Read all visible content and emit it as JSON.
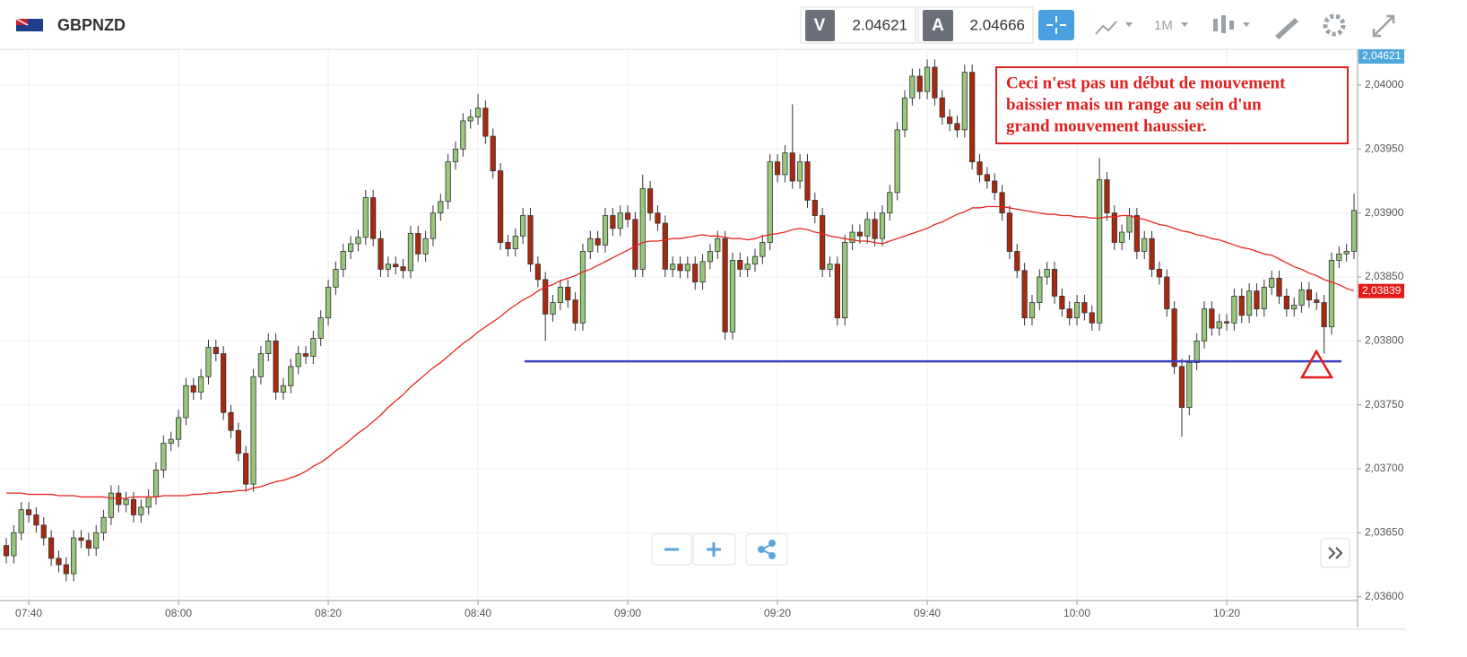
{
  "header": {
    "symbol": "GBPNZD",
    "sell_label": "V",
    "sell_price": "2.04621",
    "buy_label": "A",
    "buy_price": "2.04666",
    "timeframe": "1M"
  },
  "annotation": {
    "lines": [
      "Ceci n'est pas un début de mouvement",
      "baissier mais un range au sein d'un",
      "grand mouvement haussier."
    ],
    "color": "#e02020"
  },
  "chart_data": {
    "type": "candlestick",
    "grid": true,
    "up_color": "#97c77a",
    "down_color": "#a8290e",
    "ylim": [
      2.03597,
      2.04028
    ],
    "yticks": [
      {
        "value": 2.036,
        "label": "2,03600"
      },
      {
        "value": 2.0365,
        "label": "2,03650"
      },
      {
        "value": 2.037,
        "label": "2,03700"
      },
      {
        "value": 2.0375,
        "label": "2,03750"
      },
      {
        "value": 2.038,
        "label": "2,03800"
      },
      {
        "value": 2.0385,
        "label": "2,03850"
      },
      {
        "value": 2.039,
        "label": "2,03900"
      },
      {
        "value": 2.0395,
        "label": "2,03950"
      },
      {
        "value": 2.04,
        "label": "2,04000"
      }
    ],
    "price_tags": [
      {
        "value": 2.04621,
        "label": "2,04621",
        "color": "#4ea8de"
      },
      {
        "value": 2.03839,
        "label": "2,03839",
        "color": "#e51a1a"
      }
    ],
    "support": {
      "value": 2.03784,
      "color": "#3a3fbf"
    },
    "categories": [
      null,
      null,
      null,
      "07:40",
      null,
      null,
      null,
      null,
      null,
      null,
      null,
      null,
      null,
      null,
      null,
      null,
      null,
      null,
      null,
      null,
      null,
      null,
      null,
      "08:00",
      null,
      null,
      null,
      null,
      null,
      null,
      null,
      null,
      null,
      null,
      null,
      null,
      null,
      null,
      null,
      null,
      null,
      null,
      null,
      "08:20",
      null,
      null,
      null,
      null,
      null,
      null,
      null,
      null,
      null,
      null,
      null,
      null,
      null,
      null,
      null,
      null,
      null,
      null,
      null,
      "08:40",
      null,
      null,
      null,
      null,
      null,
      null,
      null,
      null,
      null,
      null,
      null,
      null,
      null,
      null,
      null,
      null,
      null,
      null,
      null,
      "09:00",
      null,
      null,
      null,
      null,
      null,
      null,
      null,
      null,
      null,
      null,
      null,
      null,
      null,
      null,
      null,
      null,
      null,
      null,
      null,
      "09:20",
      null,
      null,
      null,
      null,
      null,
      null,
      null,
      null,
      null,
      null,
      null,
      null,
      null,
      null,
      null,
      null,
      null,
      null,
      null,
      "09:40",
      null,
      null,
      null,
      null,
      null,
      null,
      null,
      null,
      null,
      null,
      null,
      null,
      null,
      null,
      null,
      null,
      null,
      null,
      null,
      "10:00",
      null,
      null,
      null,
      null,
      null,
      null,
      null,
      null,
      null,
      null,
      null,
      null,
      null,
      null,
      null,
      null,
      null,
      null,
      null,
      "10:20",
      null,
      null,
      null,
      null,
      null,
      null,
      null,
      null,
      null,
      null,
      null,
      null,
      null,
      null,
      null,
      null,
      null
    ],
    "open": [
      2.0364,
      2.03632,
      2.0365,
      2.03668,
      2.03664,
      2.03656,
      2.03646,
      2.0363,
      2.03625,
      2.03618,
      2.03646,
      2.03644,
      2.03638,
      2.0365,
      2.03662,
      2.03681,
      2.03672,
      2.03676,
      2.03664,
      2.0367,
      2.03678,
      2.03699,
      2.0372,
      2.03723,
      2.0374,
      2.03765,
      2.0376,
      2.03772,
      2.03795,
      2.0379,
      2.03744,
      2.0373,
      2.03712,
      2.03688,
      2.03772,
      2.0379,
      2.038,
      2.0376,
      2.03765,
      2.0378,
      2.0379,
      2.03788,
      2.03802,
      2.03818,
      2.03842,
      2.03856,
      2.0387,
      2.03876,
      2.03881,
      2.03912,
      2.0388,
      2.03856,
      2.0386,
      2.03858,
      2.03855,
      2.03884,
      2.03868,
      2.0388,
      2.039,
      2.03909,
      2.0394,
      2.0395,
      2.03972,
      2.03975,
      2.03982,
      2.0396,
      2.03933,
      2.03877,
      2.03872,
      2.03882,
      2.03898,
      2.0386,
      2.03848,
      2.03821,
      2.0383,
      2.03842,
      2.03832,
      2.03814,
      2.0387,
      2.0388,
      2.03875,
      2.03898,
      2.03888,
      2.039,
      2.03895,
      2.03856,
      2.03919,
      2.039,
      2.03892,
      2.03856,
      2.0386,
      2.03855,
      2.0386,
      2.03846,
      2.03862,
      2.0387,
      2.0388,
      2.03807,
      2.03863,
      2.03856,
      2.0386,
      2.03866,
      2.03877,
      2.0394,
      2.0393,
      2.03947,
      2.03925,
      2.0394,
      2.0391,
      2.03898,
      2.03856,
      2.0386,
      2.03818,
      2.03877,
      2.03885,
      2.03882,
      2.03895,
      2.0388,
      2.039,
      2.03916,
      2.03965,
      2.0399,
      2.04007,
      2.03995,
      2.04014,
      2.0399,
      2.03975,
      2.0397,
      2.03965,
      2.0401,
      2.0394,
      2.0393,
      2.03925,
      2.03916,
      2.039,
      2.0387,
      2.03855,
      2.03818,
      2.0383,
      2.0385,
      2.03856,
      2.03835,
      2.03825,
      2.03818,
      2.0383,
      2.03822,
      2.03814,
      2.03926,
      2.039,
      2.03877,
      2.03885,
      2.03898,
      2.0387,
      2.0388,
      2.03856,
      2.0385,
      2.03825,
      2.0378,
      2.03748,
      2.03783,
      2.038,
      2.03825,
      2.0381,
      2.03815,
      2.03814,
      2.03835,
      2.0382,
      2.03839,
      2.03825,
      2.03842,
      2.03849,
      2.03835,
      2.03825,
      2.03828,
      2.0384,
      2.03832,
      2.0383,
      2.03811,
      2.03863,
      2.03868,
      2.0387
    ],
    "high": [
      2.03646,
      2.03656,
      2.03674,
      2.03674,
      2.0367,
      2.03662,
      2.03652,
      2.03636,
      2.03631,
      2.03652,
      2.03652,
      2.0365,
      2.03656,
      2.03668,
      2.03687,
      2.03687,
      2.03682,
      2.03682,
      2.03676,
      2.03684,
      2.03705,
      2.03726,
      2.03729,
      2.03746,
      2.03771,
      2.03771,
      2.03778,
      2.03801,
      2.03801,
      2.03796,
      2.0375,
      2.03736,
      2.03718,
      2.03778,
      2.03796,
      2.03806,
      2.03806,
      2.03771,
      2.03786,
      2.03796,
      2.03796,
      2.03808,
      2.03824,
      2.03848,
      2.03862,
      2.03876,
      2.03882,
      2.03887,
      2.03918,
      2.03918,
      2.03886,
      2.03866,
      2.03866,
      2.03864,
      2.0389,
      2.0389,
      2.03886,
      2.03906,
      2.03915,
      2.03946,
      2.03956,
      2.03978,
      2.03981,
      2.03993,
      2.03988,
      2.03966,
      2.03939,
      2.03883,
      2.03888,
      2.03904,
      2.03904,
      2.03866,
      2.03854,
      2.03836,
      2.03848,
      2.03848,
      2.03838,
      2.03876,
      2.03886,
      2.03886,
      2.03904,
      2.03904,
      2.03906,
      2.03906,
      2.03901,
      2.0393,
      2.03925,
      2.03906,
      2.03898,
      2.03866,
      2.03866,
      2.03866,
      2.03866,
      2.03868,
      2.03876,
      2.03886,
      2.03886,
      2.03869,
      2.03869,
      2.03866,
      2.03872,
      2.03883,
      2.03946,
      2.03946,
      2.03953,
      2.03985,
      2.03946,
      2.03946,
      2.03916,
      2.03904,
      2.03866,
      2.03866,
      2.03883,
      2.03891,
      2.03891,
      2.03901,
      2.03901,
      2.03906,
      2.03922,
      2.03971,
      2.03996,
      2.04013,
      2.04013,
      2.0402,
      2.0402,
      2.03996,
      2.03981,
      2.03976,
      2.04016,
      2.04016,
      2.03946,
      2.03936,
      2.03931,
      2.03922,
      2.03906,
      2.03876,
      2.03861,
      2.03836,
      2.03856,
      2.03862,
      2.03862,
      2.03841,
      2.03831,
      2.03836,
      2.03836,
      2.03828,
      2.03943,
      2.03932,
      2.03906,
      2.03891,
      2.03904,
      2.03904,
      2.03886,
      2.03886,
      2.03862,
      2.03856,
      2.03831,
      2.03786,
      2.03789,
      2.03806,
      2.03831,
      2.03831,
      2.03821,
      2.03821,
      2.03841,
      2.03841,
      2.03845,
      2.03845,
      2.03848,
      2.03855,
      2.03855,
      2.03841,
      2.03834,
      2.03846,
      2.03846,
      2.03838,
      2.03836,
      2.03869,
      2.03874,
      2.03876,
      2.03915
    ],
    "low": [
      2.03626,
      2.03626,
      2.03644,
      2.03658,
      2.0365,
      2.0364,
      2.03624,
      2.03619,
      2.03612,
      2.03612,
      2.03638,
      2.03632,
      2.03632,
      2.03644,
      2.03656,
      2.03666,
      2.03666,
      2.03658,
      2.03658,
      2.03664,
      2.03672,
      2.03693,
      2.03714,
      2.03717,
      2.03734,
      2.03754,
      2.03754,
      2.03766,
      2.03784,
      2.03738,
      2.03724,
      2.03706,
      2.03682,
      2.03682,
      2.03766,
      2.03784,
      2.03754,
      2.03754,
      2.03759,
      2.03774,
      2.03782,
      2.03782,
      2.03796,
      2.03812,
      2.03836,
      2.0385,
      2.03864,
      2.0387,
      2.03875,
      2.03874,
      2.0385,
      2.0385,
      2.03852,
      2.03849,
      2.03849,
      2.03862,
      2.03862,
      2.03874,
      2.03894,
      2.03903,
      2.03934,
      2.03944,
      2.03966,
      2.03969,
      2.03954,
      2.03927,
      2.03871,
      2.03866,
      2.03866,
      2.03876,
      2.03854,
      2.03842,
      2.038,
      2.03815,
      2.03824,
      2.03826,
      2.03808,
      2.03808,
      2.03864,
      2.03869,
      2.03869,
      2.03882,
      2.03882,
      2.03889,
      2.0385,
      2.0385,
      2.03894,
      2.03886,
      2.0385,
      2.0385,
      2.03849,
      2.03849,
      2.0384,
      2.0384,
      2.03856,
      2.03864,
      2.03801,
      2.03801,
      2.0385,
      2.0385,
      2.03854,
      2.0386,
      2.03871,
      2.03924,
      2.03924,
      2.03919,
      2.03919,
      2.03904,
      2.03892,
      2.0385,
      2.0385,
      2.03812,
      2.03812,
      2.03871,
      2.03876,
      2.03876,
      2.03874,
      2.03874,
      2.03894,
      2.0391,
      2.03959,
      2.03984,
      2.03989,
      2.03989,
      2.03984,
      2.03969,
      2.03964,
      2.03959,
      2.03959,
      2.03934,
      2.03924,
      2.03919,
      2.0391,
      2.03894,
      2.03864,
      2.03849,
      2.03812,
      2.03812,
      2.03824,
      2.03844,
      2.03829,
      2.03819,
      2.03812,
      2.03812,
      2.03816,
      2.03808,
      2.03808,
      2.03894,
      2.03871,
      2.03871,
      2.03879,
      2.03864,
      2.03864,
      2.0385,
      2.03844,
      2.03819,
      2.03774,
      2.03725,
      2.03742,
      2.03777,
      2.03794,
      2.03804,
      2.03804,
      2.03808,
      2.03808,
      2.03814,
      2.03814,
      2.03819,
      2.03819,
      2.03836,
      2.03829,
      2.03819,
      2.03819,
      2.03822,
      2.03826,
      2.03824,
      2.0379,
      2.03805,
      2.03857,
      2.03862,
      2.03864
    ],
    "close": [
      2.03632,
      2.0365,
      2.03668,
      2.03664,
      2.03656,
      2.03646,
      2.0363,
      2.03625,
      2.03618,
      2.03646,
      2.03644,
      2.03638,
      2.0365,
      2.03662,
      2.03681,
      2.03672,
      2.03676,
      2.03664,
      2.0367,
      2.03678,
      2.03699,
      2.0372,
      2.03723,
      2.0374,
      2.03765,
      2.0376,
      2.03772,
      2.03795,
      2.0379,
      2.03744,
      2.0373,
      2.03712,
      2.03688,
      2.03772,
      2.0379,
      2.038,
      2.0376,
      2.03765,
      2.0378,
      2.0379,
      2.03788,
      2.03802,
      2.03818,
      2.03842,
      2.03856,
      2.0387,
      2.03876,
      2.03881,
      2.03912,
      2.0388,
      2.03856,
      2.0386,
      2.03858,
      2.03855,
      2.03884,
      2.03868,
      2.0388,
      2.039,
      2.03909,
      2.0394,
      2.0395,
      2.03972,
      2.03975,
      2.03982,
      2.0396,
      2.03933,
      2.03877,
      2.03872,
      2.03882,
      2.03898,
      2.0386,
      2.03848,
      2.03821,
      2.0383,
      2.03842,
      2.03832,
      2.03814,
      2.0387,
      2.0388,
      2.03875,
      2.03898,
      2.03888,
      2.039,
      2.03895,
      2.03856,
      2.03919,
      2.039,
      2.03892,
      2.03856,
      2.0386,
      2.03855,
      2.0386,
      2.03846,
      2.03862,
      2.0387,
      2.0388,
      2.03807,
      2.03863,
      2.03856,
      2.0386,
      2.03866,
      2.03877,
      2.0394,
      2.0393,
      2.03947,
      2.03925,
      2.0394,
      2.0391,
      2.03898,
      2.03856,
      2.0386,
      2.03818,
      2.03877,
      2.03885,
      2.03882,
      2.03895,
      2.0388,
      2.039,
      2.03916,
      2.03965,
      2.0399,
      2.04007,
      2.03995,
      2.04014,
      2.0399,
      2.03975,
      2.0397,
      2.03965,
      2.0401,
      2.0394,
      2.0393,
      2.03925,
      2.03916,
      2.039,
      2.0387,
      2.03855,
      2.03818,
      2.0383,
      2.0385,
      2.03856,
      2.03835,
      2.03825,
      2.03818,
      2.0383,
      2.03822,
      2.03814,
      2.03926,
      2.039,
      2.03877,
      2.03885,
      2.03898,
      2.0387,
      2.0388,
      2.03856,
      2.0385,
      2.03825,
      2.0378,
      2.03748,
      2.03783,
      2.038,
      2.03825,
      2.0381,
      2.03815,
      2.03814,
      2.03835,
      2.0382,
      2.03839,
      2.03825,
      2.03842,
      2.03849,
      2.03835,
      2.03825,
      2.03828,
      2.0384,
      2.03832,
      2.0383,
      2.03811,
      2.03863,
      2.03868,
      2.0387,
      2.03902
    ],
    "ma": {
      "color": "#e8251f",
      "values": [
        2.03681,
        2.03681,
        2.03681,
        2.0368,
        2.0368,
        2.0368,
        2.0368,
        2.03679,
        2.03679,
        2.03679,
        2.03678,
        2.03678,
        2.03678,
        2.03678,
        2.03677,
        2.03677,
        2.03677,
        2.03678,
        2.03678,
        2.03678,
        2.03678,
        2.03679,
        2.03679,
        2.03679,
        2.03679,
        2.0368,
        2.0368,
        2.03681,
        2.03681,
        2.03682,
        2.03682,
        2.03683,
        2.03683,
        2.03685,
        2.03686,
        2.03688,
        2.0369,
        2.03691,
        2.03693,
        2.03695,
        2.03698,
        2.03702,
        2.03705,
        2.03709,
        2.03714,
        2.03718,
        2.03723,
        2.03728,
        2.03732,
        2.03737,
        2.03742,
        2.03748,
        2.03753,
        2.03758,
        2.03764,
        2.03769,
        2.03774,
        2.03779,
        2.03783,
        2.03788,
        2.03793,
        2.03798,
        2.03802,
        2.03807,
        2.03811,
        2.03815,
        2.03819,
        2.03824,
        2.03828,
        2.03832,
        2.03835,
        2.03839,
        2.03842,
        2.03844,
        2.03847,
        2.03849,
        2.03851,
        2.03854,
        2.03856,
        2.03859,
        2.03862,
        2.03865,
        2.03868,
        2.03871,
        2.03874,
        2.03877,
        2.03878,
        2.03878,
        2.03879,
        2.0388,
        2.0388,
        2.03881,
        2.03882,
        2.03883,
        2.03882,
        2.03882,
        2.03881,
        2.0388,
        2.0388,
        2.03879,
        2.0388,
        2.03882,
        2.03883,
        2.03884,
        2.03885,
        2.03887,
        2.03888,
        2.03887,
        2.03885,
        2.03884,
        2.03882,
        2.03881,
        2.0388,
        2.03879,
        2.03878,
        2.03878,
        2.03877,
        2.03876,
        2.03878,
        2.0388,
        2.03882,
        2.03884,
        2.03886,
        2.03888,
        2.03891,
        2.03893,
        2.03896,
        2.03899,
        2.03901,
        2.03904,
        2.03904,
        2.03905,
        2.03905,
        2.03905,
        2.03904,
        2.03903,
        2.03902,
        2.03901,
        2.039,
        2.03899,
        2.03899,
        2.03898,
        2.03898,
        2.03897,
        2.03897,
        2.03896,
        2.03896,
        2.03897,
        2.03897,
        2.03898,
        2.03898,
        2.03896,
        2.03895,
        2.03893,
        2.03891,
        2.0389,
        2.03888,
        2.03886,
        2.03885,
        2.03883,
        2.03882,
        2.0388,
        2.03879,
        2.03877,
        2.03875,
        2.03873,
        2.03872,
        2.0387,
        2.03868,
        2.03867,
        2.03864,
        2.03861,
        2.03858,
        2.03856,
        2.03853,
        2.03851,
        2.03848,
        2.03846,
        2.03844,
        2.03841,
        2.03839
      ]
    }
  }
}
